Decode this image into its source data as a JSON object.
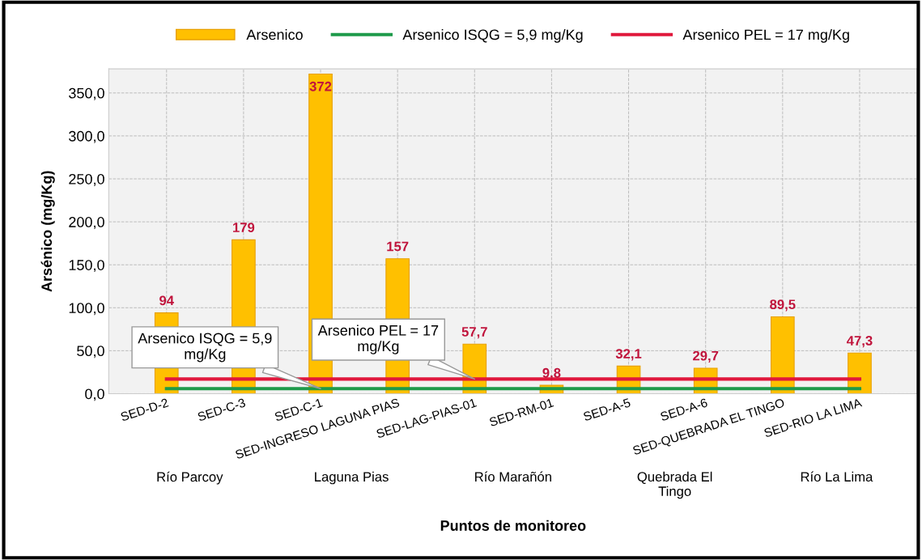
{
  "chart_data": {
    "type": "bar",
    "xlabel": "Puntos de monitoreo",
    "ylabel": "Arsénico (mg/Kg)",
    "categories": [
      "SED-D-2",
      "SED-C-3",
      "SED-C-1",
      "SED-INGRESO LAGUNA PIAS",
      "SED-LAG-PIAS-01",
      "SED-RM-01",
      "SED-A-5",
      "SED-A-6",
      "SED-QUEBRADA EL TINGO",
      "SED-RIO LA LIMA"
    ],
    "series": [
      {
        "name": "Arsenico",
        "color": "#ffc000",
        "values": [
          94,
          179,
          372,
          157,
          57.7,
          9.8,
          32.1,
          29.7,
          89.5,
          47.3
        ],
        "value_labels": [
          "94",
          "179",
          "372",
          "157",
          "57,7",
          "9,8",
          "32,1",
          "29,7",
          "89,5",
          "47,3"
        ]
      },
      {
        "name": "Arsenico ISQG = 5,9 mg/Kg",
        "type": "line",
        "color": "#1e9a4a",
        "values": [
          5.9,
          5.9,
          5.9,
          5.9,
          5.9,
          5.9,
          5.9,
          5.9,
          5.9,
          5.9
        ]
      },
      {
        "name": "Arsenico PEL = 17 mg/Kg",
        "type": "line",
        "color": "#e0183c",
        "values": [
          17,
          17,
          17,
          17,
          17,
          17,
          17,
          17,
          17,
          17
        ]
      }
    ],
    "ylim": [
      0,
      378
    ],
    "yticks": [
      {
        "value": 0,
        "label": "0,0"
      },
      {
        "value": 50,
        "label": "50,0"
      },
      {
        "value": 100,
        "label": "100,0"
      },
      {
        "value": 150,
        "label": "150,0"
      },
      {
        "value": 200,
        "label": "200,0"
      },
      {
        "value": 250,
        "label": "250,0"
      },
      {
        "value": 300,
        "label": "300,0"
      },
      {
        "value": 350,
        "label": "350,0"
      }
    ],
    "grid": true,
    "legend": "top",
    "marker": "none",
    "line_style": "solid",
    "annotations": [
      {
        "text": "Arsenico ISQG = 5,9\nmg/Kg",
        "x": "SED-C-1",
        "y": 5.9
      },
      {
        "text": "Arsenico PEL = 17\nmg/Kg",
        "x": "SED-LAG-PIAS-01",
        "y": 17
      },
      "Río Parcoy",
      "Laguna Pias",
      "Río Marañón",
      "Quebrada El\nTingo",
      "Río La Lima"
    ]
  }
}
